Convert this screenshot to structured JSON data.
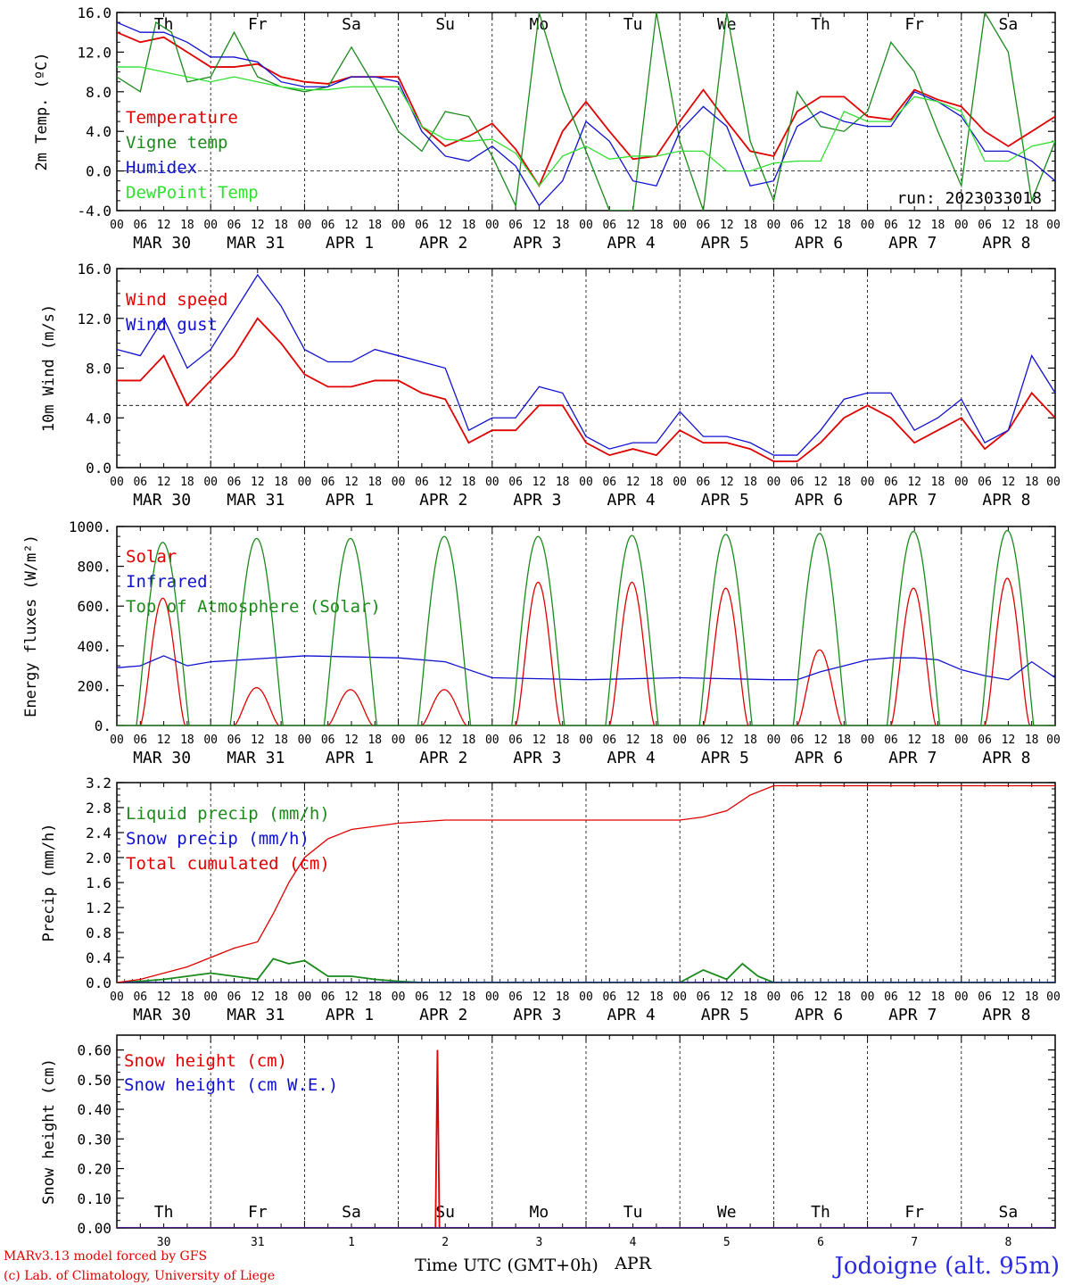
{
  "meta": {
    "run": "run: 2023033018",
    "footer_line1": "MARv3.13 model forced by GFS",
    "footer_line2": "(c) Lab. of Climatology, University of Liege",
    "time_label": "Time UTC (GMT+0h)",
    "month_label": "APR",
    "site": "Jodoigne (alt. 95m)"
  },
  "days": {
    "weekday": [
      "Th",
      "Fr",
      "Sa",
      "Su",
      "Mo",
      "Tu",
      "We",
      "Th",
      "Fr",
      "Sa"
    ],
    "weekend": [
      false,
      false,
      true,
      true,
      false,
      false,
      false,
      false,
      false,
      true
    ],
    "dates": [
      "MAR 30",
      "MAR 31",
      "APR  1",
      "APR  2",
      "APR  3",
      "APR  4",
      "APR  5",
      "APR  6",
      "APR  7",
      "APR  8"
    ],
    "daynum": [
      "30",
      "31",
      "1",
      "2",
      "3",
      "4",
      "5",
      "6",
      "7",
      "8"
    ],
    "hours": [
      "00",
      "06",
      "12",
      "18"
    ],
    "hour_end": "00"
  },
  "colors": {
    "red": "#e00000",
    "green": "#1a8a1a",
    "blue": "#1010d0",
    "lightgreen": "#30e030",
    "weekend": "#e00000"
  },
  "chart_data": [
    {
      "id": "temp",
      "type": "line",
      "ylabel": "2m Temp. (ºC)",
      "ylim": [
        -4,
        16
      ],
      "yticks": [
        -4,
        0,
        4,
        8,
        12,
        16
      ],
      "ytick_labels": [
        "-4.0",
        "0.0",
        "4.0",
        "8.0",
        "12.0",
        "16.0"
      ],
      "ref_line": 0,
      "x_unit": "hours since 30 Mar 00 UTC",
      "series": [
        {
          "name": "Temperature",
          "color": "red",
          "x": [
            0,
            6,
            12,
            18,
            24,
            30,
            36,
            42,
            48,
            54,
            60,
            66,
            72,
            78,
            84,
            90,
            96,
            102,
            108,
            114,
            120,
            126,
            132,
            138,
            144,
            150,
            156,
            162,
            168,
            174,
            180,
            186,
            192,
            198,
            204,
            210,
            216,
            222,
            228,
            234,
            240
          ],
          "y": [
            14,
            13,
            13.5,
            12,
            10.5,
            10.5,
            10.8,
            9.5,
            9,
            8.8,
            9.5,
            9.5,
            9.5,
            4.5,
            2.5,
            3.5,
            4.8,
            2.2,
            -1.5,
            4,
            7,
            4,
            1.2,
            1.5,
            5,
            8.2,
            5,
            2,
            1.5,
            6,
            7.5,
            7.5,
            5.5,
            5.2,
            8.2,
            7.2,
            6.5,
            4,
            2.5,
            4,
            5.5
          ]
        },
        {
          "name": "Vigne temp",
          "color": "green",
          "x": [
            0,
            6,
            10,
            14,
            18,
            24,
            30,
            36,
            42,
            48,
            54,
            60,
            66,
            72,
            78,
            84,
            90,
            96,
            102,
            108,
            114,
            120,
            126,
            132,
            138,
            144,
            150,
            156,
            162,
            168,
            174,
            180,
            186,
            192,
            198,
            204,
            210,
            216,
            222,
            228,
            234,
            240
          ],
          "y": [
            9.5,
            8,
            15,
            14,
            9,
            9.5,
            14,
            9.5,
            8.5,
            8,
            8.5,
            12.5,
            8.5,
            4,
            2,
            6,
            5.5,
            1.5,
            -3.5,
            16,
            8,
            2,
            -4,
            -4,
            16,
            3,
            -4,
            16,
            3,
            -3,
            8,
            4.5,
            4,
            6,
            13,
            10,
            4,
            -1.5,
            16,
            12,
            -3,
            3
          ]
        },
        {
          "name": "Humidex",
          "color": "blue",
          "x": [
            0,
            6,
            12,
            18,
            24,
            30,
            36,
            42,
            48,
            54,
            60,
            66,
            72,
            78,
            84,
            90,
            96,
            102,
            108,
            114,
            120,
            126,
            132,
            138,
            144,
            150,
            156,
            162,
            168,
            174,
            180,
            186,
            192,
            198,
            204,
            210,
            216,
            222,
            228,
            234,
            240
          ],
          "y": [
            15,
            14,
            14,
            13,
            11.5,
            11.5,
            11,
            9,
            8.5,
            8.5,
            9.5,
            9.5,
            9,
            4,
            1.5,
            1,
            2.5,
            0.5,
            -3.5,
            -1,
            5,
            3,
            -1,
            -1.5,
            4,
            6.5,
            4.5,
            -1.5,
            -1,
            4.5,
            6,
            5,
            4.5,
            4.5,
            8,
            7,
            5.5,
            2,
            2,
            1,
            -1
          ]
        },
        {
          "name": "DewPoint Temp",
          "color": "lightgreen",
          "x": [
            0,
            6,
            12,
            18,
            24,
            30,
            36,
            42,
            48,
            54,
            60,
            66,
            72,
            78,
            84,
            90,
            96,
            102,
            108,
            114,
            120,
            126,
            132,
            138,
            144,
            150,
            156,
            162,
            168,
            174,
            180,
            186,
            192,
            198,
            204,
            210,
            216,
            222,
            228,
            234,
            240
          ],
          "y": [
            10.5,
            10.5,
            10,
            9.5,
            9,
            9.5,
            9,
            8.5,
            8.2,
            8.2,
            8.5,
            8.5,
            8.5,
            4.5,
            3.2,
            3,
            3.2,
            1.8,
            -1.5,
            1.5,
            2.5,
            1.2,
            1.5,
            1.5,
            2,
            2,
            0,
            0,
            0.8,
            1,
            1,
            6,
            5,
            5,
            7.5,
            7,
            6,
            1,
            1,
            2.5,
            3
          ]
        }
      ]
    },
    {
      "id": "wind",
      "type": "line",
      "ylabel": "10m Wind (m/s)",
      "ylim": [
        0,
        16
      ],
      "yticks": [
        0,
        4,
        8,
        12,
        16
      ],
      "ytick_labels": [
        "0.0",
        "4.0",
        "8.0",
        "12.0",
        "16.0"
      ],
      "ref_line": 5,
      "series": [
        {
          "name": "Wind speed",
          "color": "red",
          "x": [
            0,
            6,
            12,
            18,
            24,
            30,
            36,
            42,
            48,
            54,
            60,
            66,
            72,
            78,
            84,
            90,
            96,
            102,
            108,
            114,
            120,
            126,
            132,
            138,
            144,
            150,
            156,
            162,
            168,
            174,
            180,
            186,
            192,
            198,
            204,
            210,
            216,
            222,
            228,
            234,
            240
          ],
          "y": [
            7,
            7,
            9,
            5,
            7,
            9,
            12,
            10,
            7.5,
            6.5,
            6.5,
            7,
            7,
            6,
            5.5,
            2,
            3,
            3,
            5,
            5,
            2,
            1,
            1.5,
            1,
            3,
            2,
            2,
            1.5,
            0.5,
            0.5,
            2,
            4,
            5,
            4,
            2,
            3,
            4,
            1.5,
            3,
            6,
            4
          ]
        },
        {
          "name": "Wind gust",
          "color": "blue",
          "x": [
            0,
            6,
            12,
            18,
            24,
            30,
            36,
            42,
            48,
            54,
            60,
            66,
            72,
            78,
            84,
            90,
            96,
            102,
            108,
            114,
            120,
            126,
            132,
            138,
            144,
            150,
            156,
            162,
            168,
            174,
            180,
            186,
            192,
            198,
            204,
            210,
            216,
            222,
            228,
            234,
            240
          ],
          "y": [
            9.5,
            9,
            12,
            8,
            9.5,
            12.5,
            15.5,
            13,
            9.5,
            8.5,
            8.5,
            9.5,
            9,
            8.5,
            8,
            3,
            4,
            4,
            6.5,
            6,
            2.5,
            1.5,
            2,
            2,
            4.5,
            2.5,
            2.5,
            2,
            1,
            1,
            3,
            5.5,
            6,
            6,
            3,
            4,
            5.5,
            2,
            3,
            9,
            6
          ]
        }
      ]
    },
    {
      "id": "flux",
      "type": "line",
      "ylabel": "Energy fluxes (W/m²)",
      "ylim": [
        0,
        1000
      ],
      "yticks": [
        0,
        200,
        400,
        600,
        800,
        1000
      ],
      "ytick_labels": [
        "0.",
        "200.",
        "400.",
        "600.",
        "800.",
        "1000."
      ],
      "series": [
        {
          "name": "Solar",
          "color": "red",
          "day_peak": [
            640,
            190,
            180,
            180,
            720,
            720,
            690,
            380,
            690,
            740
          ]
        },
        {
          "name": "Infrared",
          "color": "blue",
          "x": [
            0,
            6,
            12,
            18,
            24,
            48,
            72,
            84,
            96,
            120,
            144,
            168,
            174,
            180,
            186,
            192,
            198,
            204,
            210,
            216,
            222,
            228,
            234,
            240
          ],
          "y": [
            290,
            300,
            350,
            300,
            320,
            350,
            340,
            320,
            240,
            230,
            240,
            230,
            230,
            270,
            300,
            330,
            340,
            340,
            330,
            280,
            250,
            230,
            320,
            240
          ]
        },
        {
          "name": "Top of Atmosphere (Solar)",
          "color": "green",
          "day_peak": [
            920,
            940,
            940,
            950,
            950,
            955,
            960,
            965,
            975,
            980
          ]
        }
      ]
    },
    {
      "id": "precip",
      "type": "line",
      "ylabel": "Precip (mm/h)",
      "ylim": [
        0,
        3.2
      ],
      "yticks": [
        0,
        0.4,
        0.8,
        1.2,
        1.6,
        2.0,
        2.4,
        2.8,
        3.2
      ],
      "ytick_labels": [
        "0.0",
        "0.4",
        "0.8",
        "1.2",
        "1.6",
        "2.0",
        "2.4",
        "2.8",
        "3.2"
      ],
      "series": [
        {
          "name": "Liquid precip (mm/h)",
          "color": "green",
          "x": [
            0,
            6,
            12,
            18,
            24,
            30,
            36,
            40,
            44,
            48,
            54,
            60,
            66,
            72,
            78,
            84,
            144,
            150,
            156,
            160,
            164,
            168,
            174,
            240
          ],
          "y": [
            0,
            0.02,
            0.05,
            0.1,
            0.15,
            0.1,
            0.05,
            0.38,
            0.3,
            0.35,
            0.1,
            0.1,
            0.05,
            0.02,
            0,
            0,
            0,
            0.2,
            0.05,
            0.3,
            0.1,
            0,
            0,
            0
          ]
        },
        {
          "name": "Snow precip (mm/h)",
          "color": "blue",
          "x": [
            0,
            240
          ],
          "y": [
            0,
            0
          ]
        },
        {
          "name": "Total cumulated (cm)",
          "color": "red",
          "x": [
            0,
            6,
            12,
            18,
            24,
            30,
            36,
            40,
            44,
            48,
            54,
            60,
            66,
            72,
            84,
            96,
            144,
            150,
            156,
            162,
            168,
            240
          ],
          "y": [
            0,
            0.05,
            0.15,
            0.25,
            0.4,
            0.55,
            0.65,
            1.1,
            1.6,
            2.0,
            2.3,
            2.45,
            2.5,
            2.55,
            2.6,
            2.6,
            2.6,
            2.65,
            2.75,
            3.0,
            3.15,
            3.15
          ]
        }
      ]
    },
    {
      "id": "snow",
      "type": "line",
      "ylabel": "Snow height (cm)",
      "ylim": [
        0,
        0.65
      ],
      "yticks": [
        0,
        0.1,
        0.2,
        0.3,
        0.4,
        0.5,
        0.6
      ],
      "ytick_labels": [
        "0.00",
        "0.10",
        "0.20",
        "0.30",
        "0.40",
        "0.50",
        "0.60"
      ],
      "series": [
        {
          "name": "Snow height (cm)",
          "color": "red",
          "x": [
            0,
            81.5,
            82,
            82.5,
            240
          ],
          "y": [
            0,
            0,
            0.6,
            0,
            0
          ]
        },
        {
          "name": "Snow height (cm W.E.)",
          "color": "blue",
          "x": [
            0,
            240
          ],
          "y": [
            0,
            0
          ]
        }
      ]
    }
  ]
}
